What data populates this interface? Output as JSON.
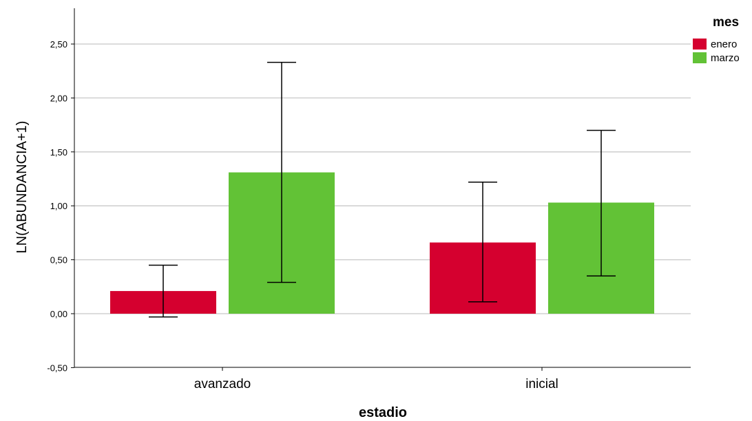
{
  "chart_data": {
    "type": "bar",
    "xlabel": "estadio",
    "ylabel": "LN(ABUNDANCIA+1)",
    "categories": [
      "avanzado",
      "inicial"
    ],
    "ylim": [
      -0.5,
      2.8
    ],
    "yticks": [
      -0.5,
      0,
      0.5,
      1,
      1.5,
      2,
      2.5
    ],
    "ytick_labels": [
      "-0,50",
      "0,00",
      "0,50",
      "1,00",
      "1,50",
      "2,00",
      "2,50"
    ],
    "grid": true,
    "legend": {
      "title": "mes",
      "placement": "top-right"
    },
    "series": [
      {
        "name": "enero",
        "color": "#d5002f",
        "values": [
          0.21,
          0.66
        ],
        "error_low": [
          -0.03,
          0.11
        ],
        "error_high": [
          0.45,
          1.22
        ]
      },
      {
        "name": "marzo",
        "color": "#62c236",
        "values": [
          1.31,
          1.03
        ],
        "error_low": [
          0.29,
          0.35
        ],
        "error_high": [
          2.33,
          1.7
        ]
      }
    ]
  }
}
